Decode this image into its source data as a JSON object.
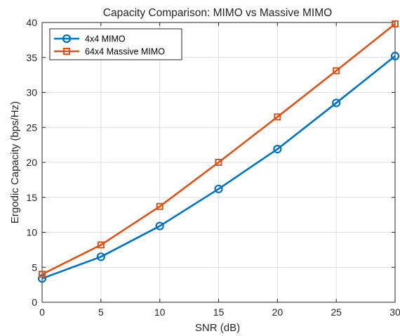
{
  "chart_data": {
    "type": "line",
    "title": "Capacity Comparison: MIMO vs Massive MIMO",
    "xlabel": "SNR (dB)",
    "ylabel": "Ergodic Capacity (bps/Hz)",
    "xlim": [
      0,
      30
    ],
    "ylim": [
      0,
      40
    ],
    "x_ticks": [
      0,
      5,
      10,
      15,
      20,
      25,
      30
    ],
    "y_ticks": [
      0,
      5,
      10,
      15,
      20,
      25,
      30,
      35,
      40
    ],
    "grid": true,
    "legend_position": "top-left",
    "x": [
      0,
      5,
      10,
      15,
      20,
      25,
      30
    ],
    "series": [
      {
        "name": "4x4 MIMO",
        "values": [
          3.4,
          6.5,
          10.9,
          16.2,
          21.9,
          28.5,
          35.2
        ],
        "color": "#0072BD",
        "marker": "circle"
      },
      {
        "name": "64x4 Massive MIMO",
        "values": [
          4.0,
          8.2,
          13.7,
          20.0,
          26.5,
          33.1,
          39.8
        ],
        "color": "#D95319",
        "marker": "square"
      }
    ]
  }
}
